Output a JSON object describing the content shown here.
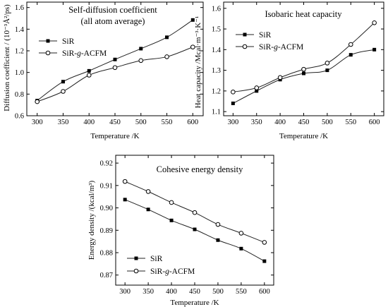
{
  "chart_data": [
    {
      "type": "line",
      "title": "Self-diffusion coefficient",
      "subtitle": "(all atom average)",
      "xlabel": "Temperature /K",
      "ylabel": "Diffusion coefficient / (10⁻³Å²/ps)",
      "x": [
        300,
        350,
        400,
        450,
        500,
        550,
        600
      ],
      "xticks": [
        "300",
        "350",
        "400",
        "450",
        "500",
        "550",
        "600"
      ],
      "xlim": [
        280,
        620
      ],
      "ylim": [
        0.6,
        1.65
      ],
      "yticks": [
        "0.6",
        "0.8",
        "1.0",
        "1.2",
        "1.4",
        "1.6"
      ],
      "legend": "top-left",
      "grid": false,
      "series": [
        {
          "name": "SiR",
          "marker": "filled-square",
          "values": [
            0.74,
            0.915,
            1.015,
            1.12,
            1.22,
            1.325,
            1.485
          ]
        },
        {
          "name": "SiR-g-ACFM",
          "name_parts": [
            "SiR-",
            "g",
            "-ACFM"
          ],
          "marker": "open-circle",
          "values": [
            0.73,
            0.825,
            0.975,
            1.045,
            1.11,
            1.145,
            1.235
          ]
        }
      ]
    },
    {
      "type": "line",
      "title": "Isobaric heat capacity",
      "xlabel": "Temperature /K",
      "ylabel": "Heat capacity /Mcal·m⁻³·K⁻¹",
      "x": [
        300,
        350,
        400,
        450,
        500,
        550,
        600
      ],
      "xticks": [
        "300",
        "350",
        "400",
        "450",
        "500",
        "550",
        "600"
      ],
      "xlim": [
        280,
        620
      ],
      "ylim": [
        1.08,
        1.63
      ],
      "yticks": [
        "1.1",
        "1.2",
        "1.3",
        "1.4",
        "1.5",
        "1.6"
      ],
      "legend": "top-left",
      "grid": false,
      "series": [
        {
          "name": "SiR",
          "marker": "filled-square",
          "values": [
            1.14,
            1.2,
            1.255,
            1.285,
            1.3,
            1.375,
            1.4
          ]
        },
        {
          "name": "SiR-g-ACFM",
          "name_parts": [
            "SiR-",
            "g",
            "-ACFM"
          ],
          "marker": "open-circle",
          "values": [
            1.195,
            1.215,
            1.265,
            1.305,
            1.335,
            1.425,
            1.53
          ]
        }
      ]
    },
    {
      "type": "line",
      "title": "Cohesive energy density",
      "xlabel": "Temperature /K",
      "ylabel": "Energy density /(kcal/m³)",
      "x": [
        300,
        350,
        400,
        450,
        500,
        550,
        600
      ],
      "xticks": [
        "300",
        "350",
        "400",
        "450",
        "500",
        "550",
        "600"
      ],
      "xlim": [
        280,
        620
      ],
      "ylim": [
        0.8655,
        0.9235
      ],
      "yticks": [
        "0.87",
        "0.88",
        "0.89",
        "0.90",
        "0.91",
        "0.92"
      ],
      "legend": "bottom-left",
      "grid": false,
      "series": [
        {
          "name": "SiR",
          "marker": "filled-square",
          "values": [
            0.9037,
            0.8993,
            0.8944,
            0.8904,
            0.8856,
            0.8818,
            0.8762
          ]
        },
        {
          "name": "SiR-g-ACFM",
          "name_parts": [
            "SiR-",
            "g",
            "-ACFM"
          ],
          "marker": "open-circle",
          "values": [
            0.9118,
            0.9073,
            0.9024,
            0.8979,
            0.8926,
            0.8887,
            0.8846
          ]
        }
      ]
    }
  ]
}
